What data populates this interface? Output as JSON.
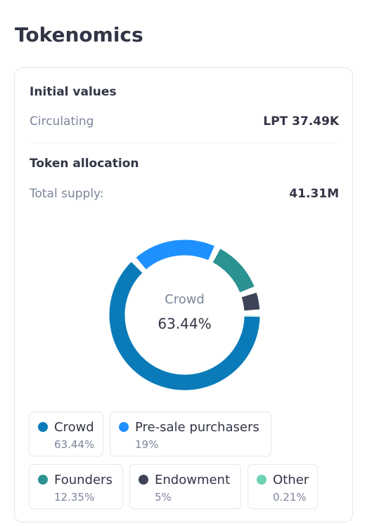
{
  "page": {
    "title": "Tokenomics"
  },
  "initial_values": {
    "title": "Initial values",
    "circulating_label": "Circulating",
    "circulating_value": "LPT 37.49K"
  },
  "token_allocation": {
    "title": "Token allocation",
    "total_supply_label": "Total supply:",
    "total_supply_value": "41.31M"
  },
  "donut": {
    "active_label": "Crowd",
    "active_value": "63.44%"
  },
  "chart_data": {
    "type": "pie",
    "categories": [
      "Crowd",
      "Pre-sale purchasers",
      "Founders",
      "Endowment",
      "Other"
    ],
    "values": [
      63.44,
      19,
      12.35,
      5,
      0.21
    ],
    "colors": [
      "#0a7bb8",
      "#1e90ff",
      "#2a9290",
      "#3e4358",
      "#6fd2b5"
    ],
    "legend": "bottom"
  },
  "legend": [
    {
      "name": "Crowd",
      "pct": "63.44%",
      "color": "#0a7bb8"
    },
    {
      "name": "Pre-sale purchasers",
      "pct": "19%",
      "color": "#1e90ff"
    },
    {
      "name": "Founders",
      "pct": "12.35%",
      "color": "#2a9290"
    },
    {
      "name": "Endowment",
      "pct": "5%",
      "color": "#3e4358"
    },
    {
      "name": "Other",
      "pct": "0.21%",
      "color": "#6fd2b5"
    }
  ]
}
